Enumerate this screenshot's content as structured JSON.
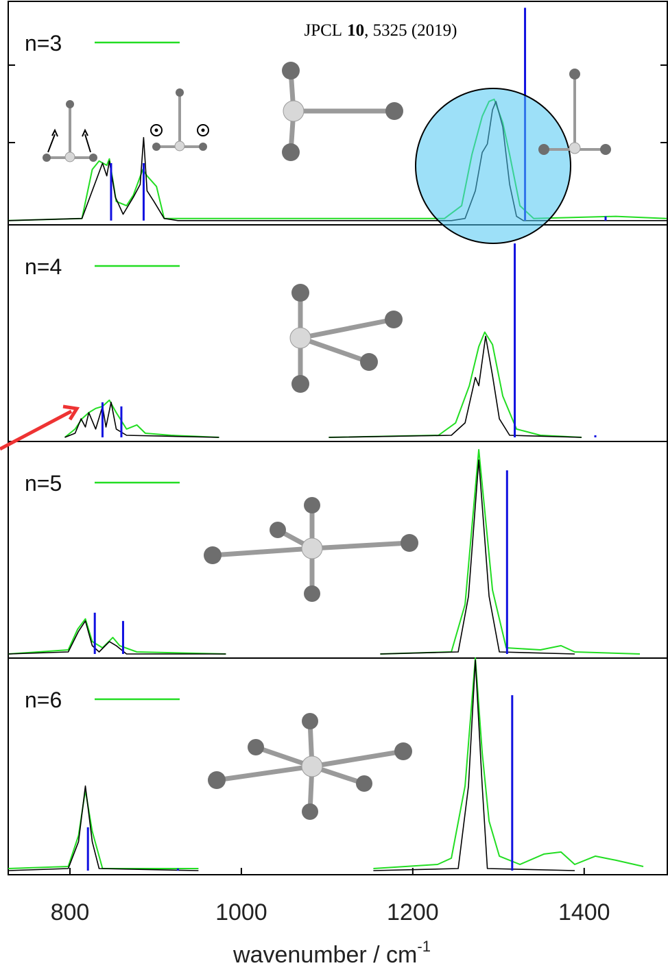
{
  "chart_data": [
    {
      "type": "line",
      "label": "n=3",
      "xlim": [
        728,
        1497
      ],
      "ylim": [
        -0.02,
        1.03
      ],
      "series": [
        {
          "name": "n=3",
          "color": "#22dd22",
          "x": [
            728,
            814,
            826,
            834,
            843,
            846,
            854,
            866,
            874,
            885,
            890,
            901,
            910,
            1038,
            1237,
            1257,
            1269,
            1281,
            1289,
            1295,
            1305,
            1313,
            1325,
            1341,
            1437,
            1496
          ],
          "values": [
            0,
            0.01,
            0.24,
            0.28,
            0.26,
            0.29,
            0.09,
            0.07,
            0.12,
            0.24,
            0.21,
            0.16,
            0.01,
            0.01,
            0.01,
            0.07,
            0.31,
            0.49,
            0.56,
            0.57,
            0.46,
            0.31,
            0.07,
            0.01,
            0.02,
            0.01
          ]
        },
        {
          "color": "#000000",
          "x": [
            728,
            814,
            826,
            838,
            843,
            846,
            853,
            862,
            874,
            882,
            886,
            890,
            898,
            910,
            926,
            1245,
            1261,
            1273,
            1281,
            1287,
            1293,
            1297,
            1305,
            1313,
            1321,
            1329,
            1497
          ],
          "values": [
            0,
            0.01,
            0.14,
            0.27,
            0.21,
            0.28,
            0.11,
            0.03,
            0.11,
            0.17,
            0.39,
            0.14,
            0.09,
            0.01,
            0,
            0,
            0.01,
            0.14,
            0.32,
            0.36,
            0.52,
            0.56,
            0.44,
            0.17,
            0.02,
            0,
            0
          ]
        },
        {
          "color": "#1010e0",
          "kind": "stick",
          "x": [
            848,
            886,
            1331,
            1425
          ],
          "values": [
            0.27,
            0.27,
            1.0,
            0.02
          ]
        }
      ]
    },
    {
      "type": "line",
      "label": "n=4",
      "xlim": [
        728,
        1497
      ],
      "ylim": [
        -0.02,
        1.03
      ],
      "series": [
        {
          "name": "n=4",
          "color": "#22dd22",
          "x": [
            794,
            806,
            814,
            822,
            830,
            838,
            846,
            854,
            866,
            878,
            888,
            918,
            974,
            1040,
            1102,
            1230,
            1250,
            1266,
            1277,
            1284,
            1293,
            1305,
            1321,
            1349,
            1397
          ],
          "values": [
            0,
            0.04,
            0.09,
            0.12,
            0.14,
            0.15,
            0.18,
            0.12,
            0.04,
            0.06,
            0.02,
            0.01,
            0,
            null,
            0,
            0.01,
            0.07,
            0.25,
            0.44,
            0.51,
            0.45,
            0.2,
            0.04,
            0.01,
            0
          ]
        },
        {
          "color": "#000000",
          "x": [
            794,
            806,
            813,
            818,
            822,
            830,
            838,
            842,
            848,
            854,
            866,
            974,
            1040,
            1102,
            1245,
            1261,
            1273,
            1277,
            1285,
            1293,
            1301,
            1313,
            1397
          ],
          "values": [
            0,
            0.02,
            0.09,
            0.05,
            0.12,
            0.04,
            0.15,
            0.05,
            0.17,
            0.04,
            0.01,
            0,
            null,
            0,
            0.01,
            0.07,
            0.29,
            0.25,
            0.49,
            0.3,
            0.09,
            0.01,
            0
          ]
        },
        {
          "color": "#1010e0",
          "kind": "stick",
          "x": [
            838,
            860,
            1319,
            1413
          ],
          "values": [
            0.17,
            0.15,
            0.94,
            0.01
          ]
        }
      ]
    },
    {
      "type": "line",
      "label": "n=5",
      "xlim": [
        728,
        1497
      ],
      "ylim": [
        -0.02,
        1.03
      ],
      "series": [
        {
          "name": "n=5",
          "color": "#22dd22",
          "x": [
            728,
            798,
            809,
            818,
            826,
            838,
            850,
            858,
            878,
            982,
            1070,
            1162,
            1245,
            1261,
            1277,
            1293,
            1309,
            1349,
            1373,
            1389,
            1465
          ],
          "values": [
            0,
            0.02,
            0.12,
            0.17,
            0.06,
            0.03,
            0.08,
            0.04,
            0.01,
            0,
            null,
            0,
            0.01,
            0.24,
            0.99,
            0.31,
            0.03,
            0.02,
            0.04,
            0.01,
            0
          ]
        },
        {
          "color": "#000000",
          "x": [
            728,
            798,
            810,
            818,
            826,
            834,
            846,
            854,
            866,
            982,
            1070,
            1162,
            1253,
            1265,
            1277,
            1289,
            1301,
            1389
          ],
          "values": [
            0,
            0.01,
            0.11,
            0.16,
            0.04,
            0.01,
            0.06,
            0.04,
            0,
            0,
            null,
            0,
            0.01,
            0.28,
            0.94,
            0.28,
            0.01,
            0
          ]
        },
        {
          "color": "#1010e0",
          "kind": "stick",
          "x": [
            829,
            862,
            1310
          ],
          "values": [
            0.2,
            0.16,
            0.89
          ]
        }
      ]
    },
    {
      "type": "line",
      "label": "n=6",
      "xlim": [
        728,
        1497
      ],
      "ylim": [
        -0.02,
        1.03
      ],
      "xticks": [
        800,
        1000,
        1200,
        1400
      ],
      "xlabel": "wavenumber / cm",
      "xlabel_superscript": "-1",
      "citation": [
        "JPCL",
        "10",
        ", 5325 (2019)"
      ],
      "series": [
        {
          "name": "n=6",
          "color": "#22dd22",
          "x": [
            728,
            798,
            810,
            818,
            826,
            838,
            950,
            1050,
            1154,
            1229,
            1245,
            1261,
            1273,
            1281,
            1289,
            1301,
            1325,
            1353,
            1373,
            1389,
            1413,
            1437,
            1469
          ],
          "values": [
            0.01,
            0.02,
            0.17,
            0.39,
            0.19,
            0.01,
            0.01,
            null,
            0.01,
            0.03,
            0.06,
            0.41,
            1.03,
            0.57,
            0.24,
            0.07,
            0.03,
            0.08,
            0.09,
            0.03,
            0.07,
            0.05,
            0.02
          ]
        },
        {
          "color": "#000000",
          "x": [
            728,
            798,
            810,
            818,
            826,
            834,
            950,
            1050,
            1154,
            1253,
            1265,
            1273,
            1281,
            1287,
            1389
          ],
          "values": [
            0,
            0.01,
            0.14,
            0.41,
            0.14,
            0.01,
            0,
            null,
            0,
            0.01,
            0.41,
            1.02,
            0.41,
            0.01,
            0
          ]
        },
        {
          "color": "#1010e0",
          "kind": "stick",
          "x": [
            821,
            926,
            1316
          ],
          "values": [
            0.21,
            0.01,
            0.85
          ]
        }
      ]
    }
  ]
}
